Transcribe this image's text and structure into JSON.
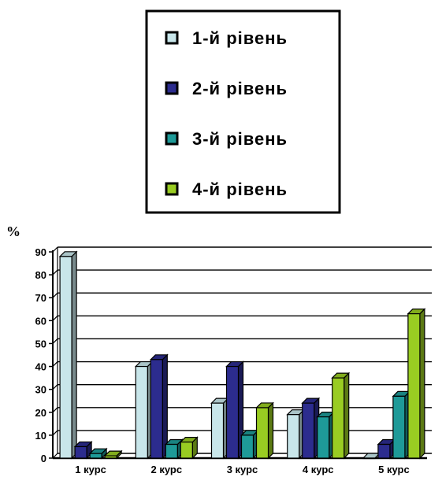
{
  "chart_data": {
    "type": "bar",
    "xlabel": "",
    "ylabel": "%",
    "categories": [
      "1 курс",
      "2 курс",
      "3 курс",
      "4 курс",
      "5 курс"
    ],
    "series": [
      {
        "name": "1-й рівень",
        "color": "#c8e6ea",
        "values": [
          88,
          40,
          24,
          19,
          0
        ]
      },
      {
        "name": "2-й рівень",
        "color": "#2c2c8e",
        "values": [
          5,
          43,
          40,
          24,
          6
        ]
      },
      {
        "name": "3-й рівень",
        "color": "#1e9a98",
        "values": [
          2,
          6,
          10,
          18,
          27
        ]
      },
      {
        "name": "4-й рівень",
        "color": "#99cc22",
        "values": [
          1,
          7,
          22,
          35,
          63
        ]
      }
    ],
    "ylim": [
      0,
      90
    ],
    "yticks": [
      "0",
      "10",
      "20",
      "30",
      "40",
      "50",
      "60",
      "70",
      "80",
      "90"
    ],
    "grid": true,
    "legend_position": "top-center"
  }
}
